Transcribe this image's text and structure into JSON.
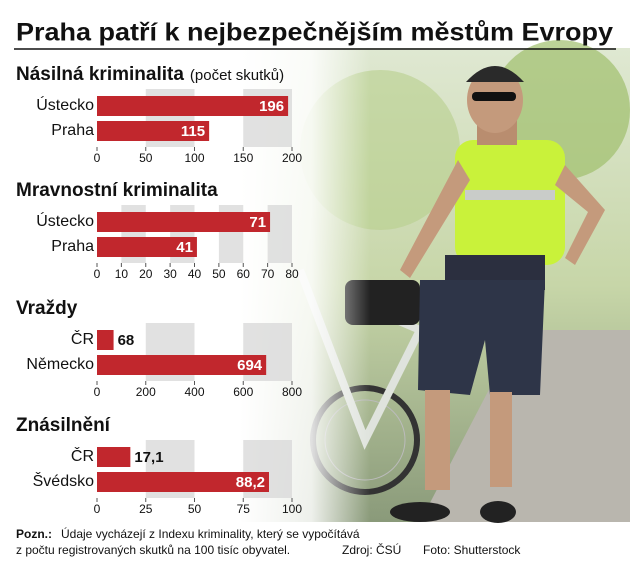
{
  "title": "Praha patří k nejbezpečnějším městům Evropy",
  "chart_data": [
    {
      "type": "bar",
      "title": "Násilná kriminalita",
      "subtitle": "(počet skutků)",
      "categories": [
        "Ústecko",
        "Praha"
      ],
      "values": [
        196,
        115
      ],
      "color": "#c1272d",
      "xlim": [
        0,
        200
      ],
      "xticks": [
        0,
        50,
        100,
        150,
        200
      ]
    },
    {
      "type": "bar",
      "title": "Mravnostní kriminalita",
      "categories": [
        "Ústecko",
        "Praha"
      ],
      "values": [
        71,
        41
      ],
      "color": "#c1272d",
      "xlim": [
        0,
        80
      ],
      "xticks": [
        0,
        10,
        20,
        30,
        40,
        50,
        60,
        70,
        80
      ]
    },
    {
      "type": "bar",
      "title": "Vraždy",
      "categories": [
        "ČR",
        "Německo"
      ],
      "values": [
        68,
        694
      ],
      "color": "#c1272d",
      "xlim": [
        0,
        800
      ],
      "xticks": [
        0,
        200,
        400,
        600,
        800
      ]
    },
    {
      "type": "bar",
      "title": "Znásilnění",
      "categories": [
        "ČR",
        "Švédsko"
      ],
      "values": [
        17.1,
        88.2
      ],
      "value_labels": [
        "17,1",
        "88,2"
      ],
      "color": "#c1272d",
      "xlim": [
        0,
        100
      ],
      "xticks": [
        0,
        25,
        50,
        75,
        100
      ]
    }
  ],
  "note_label": "Pozn.:",
  "note": [
    "Údaje vycházejí z Indexu kriminality, který se vypočítává",
    "z počtu registrovaných skutků na 100 tisíc obyvatel."
  ],
  "source": "Zdroj: ČSÚ",
  "photo_credit": "Foto: Shutterstock"
}
